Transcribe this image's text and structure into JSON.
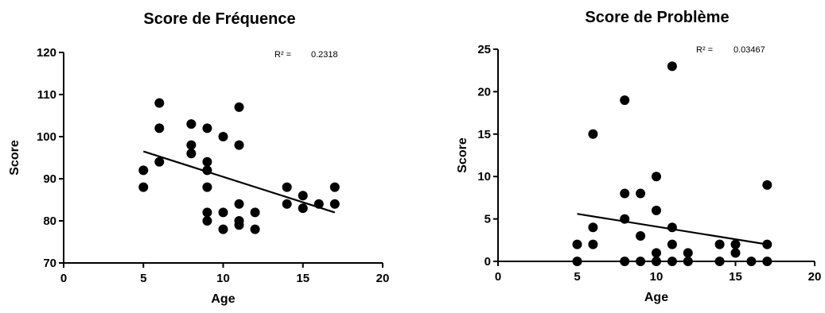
{
  "chart_data": [
    {
      "type": "scatter",
      "title": "Score de Fréquence",
      "xlabel": "Age",
      "ylabel": "Score",
      "xlim": [
        0,
        20
      ],
      "ylim": [
        70,
        120
      ],
      "xticks": [
        0,
        5,
        10,
        15,
        20
      ],
      "yticks": [
        70,
        80,
        90,
        100,
        110,
        120
      ],
      "r2_label": "R² =",
      "r2_value": "0.2318",
      "trend_line": {
        "x": [
          5,
          17
        ],
        "y": [
          96.5,
          82
        ]
      },
      "points": [
        [
          5,
          92
        ],
        [
          5,
          88
        ],
        [
          6,
          108
        ],
        [
          6,
          102
        ],
        [
          6,
          94
        ],
        [
          8,
          103
        ],
        [
          8,
          98
        ],
        [
          8,
          96
        ],
        [
          9,
          102
        ],
        [
          9,
          94
        ],
        [
          9,
          92
        ],
        [
          9,
          88
        ],
        [
          9,
          82
        ],
        [
          9,
          80
        ],
        [
          10,
          100
        ],
        [
          10,
          82
        ],
        [
          10,
          78
        ],
        [
          11,
          107
        ],
        [
          11,
          98
        ],
        [
          11,
          84
        ],
        [
          11,
          80
        ],
        [
          11,
          79
        ],
        [
          12,
          82
        ],
        [
          12,
          78
        ],
        [
          14,
          88
        ],
        [
          14,
          84
        ],
        [
          15,
          86
        ],
        [
          15,
          83
        ],
        [
          16,
          84
        ],
        [
          17,
          88
        ],
        [
          17,
          84
        ]
      ]
    },
    {
      "type": "scatter",
      "title": "Score de Problème",
      "xlabel": "Age",
      "ylabel": "Score",
      "xlim": [
        0,
        20
      ],
      "ylim": [
        0,
        25
      ],
      "xticks": [
        0,
        5,
        10,
        15,
        20
      ],
      "yticks": [
        0,
        5,
        10,
        15,
        20,
        25
      ],
      "r2_label": "R² =",
      "r2_value": "0.03467",
      "trend_line": {
        "x": [
          5,
          17
        ],
        "y": [
          5.6,
          2.0
        ]
      },
      "points": [
        [
          5,
          2
        ],
        [
          5,
          0
        ],
        [
          6,
          15
        ],
        [
          6,
          4
        ],
        [
          6,
          2
        ],
        [
          8,
          19
        ],
        [
          8,
          8
        ],
        [
          8,
          5
        ],
        [
          8,
          0
        ],
        [
          9,
          8
        ],
        [
          9,
          3
        ],
        [
          9,
          0
        ],
        [
          10,
          10
        ],
        [
          10,
          6
        ],
        [
          10,
          1
        ],
        [
          10,
          0
        ],
        [
          11,
          23
        ],
        [
          11,
          4
        ],
        [
          11,
          2
        ],
        [
          11,
          0
        ],
        [
          12,
          1
        ],
        [
          12,
          0
        ],
        [
          14,
          2
        ],
        [
          14,
          0
        ],
        [
          15,
          2
        ],
        [
          15,
          1
        ],
        [
          16,
          0
        ],
        [
          17,
          9
        ],
        [
          17,
          2
        ],
        [
          17,
          0
        ]
      ]
    }
  ]
}
